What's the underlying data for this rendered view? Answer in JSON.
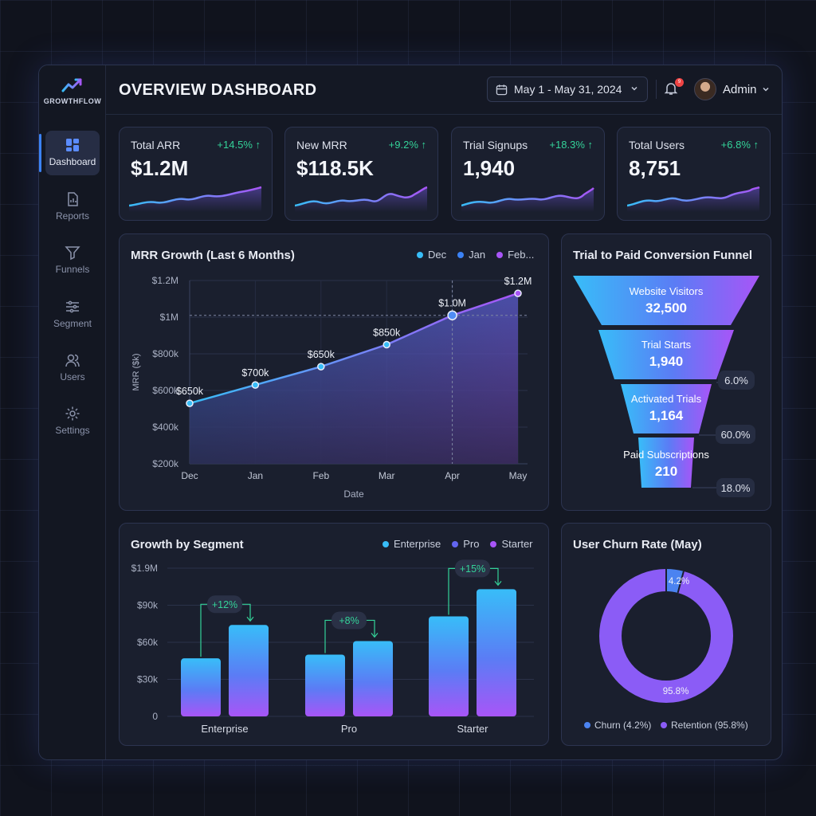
{
  "app": {
    "name": "GROWTHFLOW"
  },
  "sidebar": {
    "items": [
      {
        "label": "Dashboard",
        "icon": "dashboard-icon",
        "active": true
      },
      {
        "label": "Reports",
        "icon": "reports-icon"
      },
      {
        "label": "Funnels",
        "icon": "funnel-icon"
      },
      {
        "label": "Segment",
        "icon": "segment-icon"
      },
      {
        "label": "Users",
        "icon": "users-icon"
      },
      {
        "label": "Settings",
        "icon": "gear-icon"
      }
    ]
  },
  "header": {
    "title": "OVERVIEW DASHBOARD",
    "date_range": "May 1 - May 31, 2024",
    "notification_count": "9",
    "user_name": "Admin"
  },
  "kpis": [
    {
      "label": "Total ARR",
      "value": "$1.2M",
      "change": "+14.5% ↑"
    },
    {
      "label": "New MRR",
      "value": "$118.5K",
      "change": "+9.2% ↑"
    },
    {
      "label": "Trial Signups",
      "value": "1,940",
      "change": "+18.3% ↑"
    },
    {
      "label": "Total Users",
      "value": "8,751",
      "change": "+6.8% ↑"
    }
  ],
  "mrr_chart": {
    "title": "MRR Growth (Last 6 Months)",
    "legend": [
      "Dec",
      "Jan",
      "Feb..."
    ],
    "chart_data": {
      "type": "area",
      "categories": [
        "Dec",
        "Jan",
        "Feb",
        "Mar",
        "Apr",
        "May"
      ],
      "values": [
        650,
        700,
        650,
        850,
        1000,
        1200
      ],
      "point_labels": [
        "$650k",
        "$700k",
        "$650k",
        "$850k",
        "$1.0M",
        "$1.2M"
      ],
      "y_ticks": [
        "$1.2M",
        "$1M",
        "$800k",
        "$600k",
        "$400k",
        "$200k"
      ],
      "xlabel": "Date",
      "ylabel": "MRR ($k)"
    }
  },
  "funnel": {
    "title": "Trial to Paid Conversion Funnel",
    "stages": [
      {
        "label": "Website Visitors",
        "value": "32,500"
      },
      {
        "label": "Trial Starts",
        "value": "1,940"
      },
      {
        "label": "Activated Trials",
        "value": "1,164"
      },
      {
        "label": "Paid Subscriptions",
        "value": "210"
      }
    ],
    "rates": [
      "6.0%",
      "60.0%",
      "18.0%"
    ]
  },
  "segment_chart": {
    "title": "Growth by Segment",
    "legend": [
      "Enterprise",
      "Pro",
      "Starter"
    ],
    "legend_colors": [
      "#38bdf8",
      "#6366f1",
      "#a855f7"
    ],
    "chart_data": {
      "type": "bar",
      "categories": [
        "Enterprise",
        "Pro",
        "Starter"
      ],
      "series": [
        {
          "values": [
            47,
            50,
            81
          ]
        },
        {
          "values": [
            74,
            61,
            103
          ]
        }
      ],
      "growth_labels": [
        "+12%",
        "+8%",
        "+15%"
      ],
      "y_ticks": [
        "$1.9M",
        "$90k",
        "$60k",
        "$30k",
        "0"
      ]
    }
  },
  "churn_chart": {
    "title": "User Churn Rate (May)",
    "chart_data": {
      "type": "pie",
      "labels": [
        "Churn (4.2%)",
        "Retention (95.8%)"
      ],
      "values": [
        4.2,
        95.8
      ],
      "slice_labels": [
        "4.2%",
        "95.8%"
      ],
      "colors": [
        "#4b83f0",
        "#8b5cf6"
      ]
    }
  }
}
